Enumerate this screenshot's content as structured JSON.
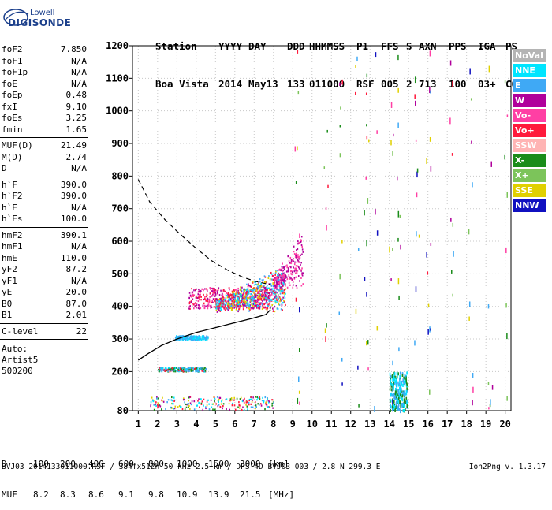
{
  "logo": {
    "line1": "Lowell",
    "line2": "DIGISONDE"
  },
  "header": {
    "labels": [
      "Station",
      "YYYY",
      "DAY",
      "DDD",
      "HHMMSS",
      "P1",
      "FFS",
      "S",
      "AXN",
      "PPS",
      "IGA",
      "PS"
    ],
    "values": [
      "Boa Vista",
      "2014",
      "May13",
      "133",
      "011000",
      "RSF",
      "005",
      "2",
      "713",
      "100",
      "03+",
      "C0"
    ]
  },
  "params": [
    {
      "k": "foF2",
      "v": "7.850"
    },
    {
      "k": "foF1",
      "v": "N/A"
    },
    {
      "k": "foF1p",
      "v": "N/A"
    },
    {
      "k": "foE",
      "v": "N/A"
    },
    {
      "k": "foEp",
      "v": "0.48"
    },
    {
      "k": "fxI",
      "v": "9.10"
    },
    {
      "k": "foEs",
      "v": "3.25"
    },
    {
      "k": "fmin",
      "v": "1.65"
    },
    {
      "k": "MUF(D)",
      "v": "21.49"
    },
    {
      "k": "M(D)",
      "v": "2.74"
    },
    {
      "k": "D",
      "v": "N/A"
    },
    {
      "k": "h`F",
      "v": "390.0"
    },
    {
      "k": "h`F2",
      "v": "390.0"
    },
    {
      "k": "h`E",
      "v": "N/A"
    },
    {
      "k": "h`Es",
      "v": "100.0"
    },
    {
      "k": "hmF2",
      "v": "390.1"
    },
    {
      "k": "hmF1",
      "v": "N/A"
    },
    {
      "k": "hmE",
      "v": "110.0"
    },
    {
      "k": "yF2",
      "v": "87.2"
    },
    {
      "k": "yF1",
      "v": "N/A"
    },
    {
      "k": "yE",
      "v": "20.0"
    },
    {
      "k": "B0",
      "v": "87.0"
    },
    {
      "k": "B1",
      "v": "2.01"
    },
    {
      "k": "C-level",
      "v": "22"
    }
  ],
  "auto": {
    "line1": "Auto:",
    "line2": "Artist5",
    "line3": "500200"
  },
  "legend": [
    {
      "label": "NoVal",
      "color": "#b4b4b4"
    },
    {
      "label": "NNE",
      "color": "#00e5ff"
    },
    {
      "label": "E",
      "color": "#3fa9f5"
    },
    {
      "label": "W",
      "color": "#b0009b"
    },
    {
      "label": "Vo-",
      "color": "#ff3fa4"
    },
    {
      "label": "Vo+",
      "color": "#ff1a3c"
    },
    {
      "label": "SSW",
      "color": "#ffb4b4"
    },
    {
      "label": "X-",
      "color": "#1a8c1a"
    },
    {
      "label": "X+",
      "color": "#7cc45a"
    },
    {
      "label": "SSE",
      "color": "#e0d000"
    },
    {
      "label": "NNW",
      "color": "#1010c0"
    }
  ],
  "bottom": {
    "d_label": "D",
    "d_values": [
      "100",
      "200",
      "400",
      "600",
      "800",
      "1000",
      "1500",
      "3000",
      "[km]"
    ],
    "muf_label": "MUF",
    "muf_values": [
      "8.2",
      "8.3",
      "8.6",
      "9.1",
      "9.8",
      "10.9",
      "13.9",
      "21.5",
      "[MHz]"
    ]
  },
  "footer": "BVJ03_2014133011000.RSF / 384fx512h 50 kHz 2.5 km / DPS-4D BVJ03 003 / 2.8 N 299.3 E",
  "version": "Ion2Png v. 1.3.17",
  "chart_data": {
    "type": "scatter",
    "x_ticks": [
      1,
      2,
      3,
      4,
      5,
      6,
      7,
      8,
      9,
      10,
      11,
      12,
      13,
      14,
      15,
      16,
      17,
      18,
      19,
      20
    ],
    "y_ticks": [
      80,
      200,
      300,
      400,
      500,
      600,
      700,
      800,
      900,
      1000,
      1100,
      1200
    ],
    "xlim": [
      0.7,
      20.3
    ],
    "ylim": [
      80,
      1200
    ],
    "grid": true,
    "dashed_curve": {
      "x": [
        1.0,
        1.6,
        2.4,
        3.2,
        4.0,
        4.8,
        5.6,
        6.4,
        7.0,
        7.6,
        7.85
      ],
      "y": [
        790,
        720,
        665,
        620,
        578,
        540,
        512,
        490,
        478,
        470,
        468
      ]
    },
    "solid_curve": {
      "x": [
        1.0,
        1.5,
        2.2,
        3.0,
        4.0,
        5.0,
        6.0,
        7.0,
        7.6,
        7.85
      ],
      "y": [
        235,
        255,
        280,
        300,
        320,
        335,
        350,
        365,
        375,
        390
      ]
    },
    "clusters": [
      {
        "x": [
          3.6,
          7.9
        ],
        "y": [
          395,
          460
        ],
        "colors": [
          "#b0009b",
          "#ff1a3c",
          "#ff3fa4"
        ]
      },
      {
        "x": [
          5.0,
          8.6
        ],
        "y": [
          385,
          560
        ],
        "colors": [
          "#3fa9f5",
          "#00e5ff",
          "#b0009b",
          "#ff1a3c",
          "#e0d000"
        ]
      },
      {
        "x": [
          8.0,
          9.5
        ],
        "y": [
          450,
          620
        ],
        "colors": [
          "#b0009b",
          "#ff3fa4"
        ]
      },
      {
        "x": [
          2.9,
          4.6
        ],
        "y": [
          300,
          312
        ],
        "colors": [
          "#3fa9f5",
          "#00e5ff"
        ]
      },
      {
        "x": [
          2.0,
          4.5
        ],
        "y": [
          202,
          215
        ],
        "colors": [
          "#1a8c1a",
          "#3fa9f5",
          "#ff1a3c",
          "#00e5ff"
        ]
      },
      {
        "x": [
          1.6,
          8.0
        ],
        "y": [
          85,
          125
        ],
        "colors": [
          "#3fa9f5",
          "#00e5ff",
          "#ff1a3c",
          "#b0009b",
          "#e0d000",
          "#1a8c1a"
        ]
      },
      {
        "x": [
          14.0,
          14.9
        ],
        "y": [
          82,
          200
        ],
        "colors": [
          "#3fa9f5",
          "#00e5ff",
          "#1a8c1a"
        ]
      }
    ]
  }
}
